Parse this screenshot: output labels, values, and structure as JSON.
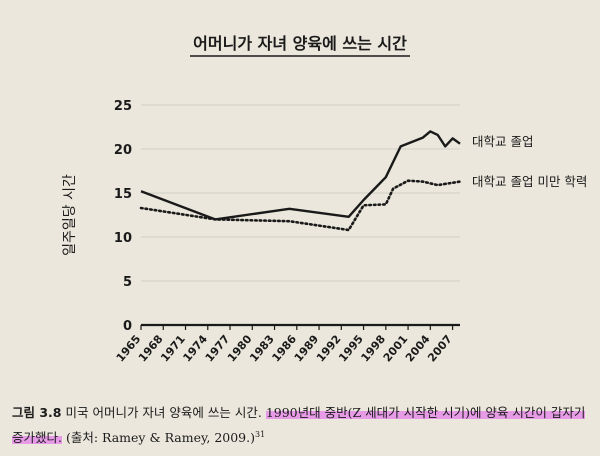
{
  "chart_data": {
    "type": "line",
    "title": "어머니가 자녀 양육에 쓰는 시간",
    "ylabel": "일주일당 시간",
    "xlabel": "",
    "ylim": [
      0,
      25
    ],
    "yticks": [
      0,
      5,
      10,
      15,
      20,
      25
    ],
    "xlim": [
      1965,
      2008
    ],
    "xticks": [
      1965,
      1968,
      1971,
      1974,
      1977,
      1980,
      1983,
      1986,
      1989,
      1992,
      1995,
      1998,
      2001,
      2004,
      2007
    ],
    "xtick_labels": [
      "1965",
      "1968",
      "1971",
      "1974",
      "1977",
      "1980",
      "1983",
      "1986",
      "1989",
      "1992",
      "1995",
      "1998",
      "2001",
      "2004",
      "2007"
    ],
    "grid": true,
    "legend": "right, at line ends",
    "series": [
      {
        "name": "대학교 졸업",
        "style": "solid",
        "color": "#1a1a1a",
        "points": [
          [
            1965,
            15.2
          ],
          [
            1975,
            12.0
          ],
          [
            1985,
            13.2
          ],
          [
            1993,
            12.3
          ],
          [
            1995,
            14.2
          ],
          [
            1998,
            16.8
          ],
          [
            2000,
            20.3
          ],
          [
            2003,
            21.3
          ],
          [
            2004,
            22.0
          ],
          [
            2005,
            21.6
          ],
          [
            2006,
            20.3
          ],
          [
            2007,
            21.2
          ],
          [
            2008,
            20.6
          ]
        ]
      },
      {
        "name": "대학교 졸업 미만 학력",
        "style": "dotted",
        "color": "#1a1a1a",
        "points": [
          [
            1965,
            13.3
          ],
          [
            1975,
            12.0
          ],
          [
            1985,
            11.8
          ],
          [
            1993,
            10.8
          ],
          [
            1995,
            13.6
          ],
          [
            1998,
            13.7
          ],
          [
            1999,
            15.5
          ],
          [
            2001,
            16.4
          ],
          [
            2003,
            16.3
          ],
          [
            2005,
            15.9
          ],
          [
            2008,
            16.3
          ]
        ]
      }
    ]
  },
  "caption": {
    "label": "그림 3.8",
    "text_plain": "미국 어머니가 자녀 양육에 쓰는 시간.",
    "text_highlighted": "1990년대 중반(Z 세대가 시작한 시기)에 양육 시간이 갑자기 증가했다.",
    "source": "(출처: Ramey & Ramey, 2009.)",
    "footnote": "31",
    "highlight_color": "#e79be7"
  }
}
